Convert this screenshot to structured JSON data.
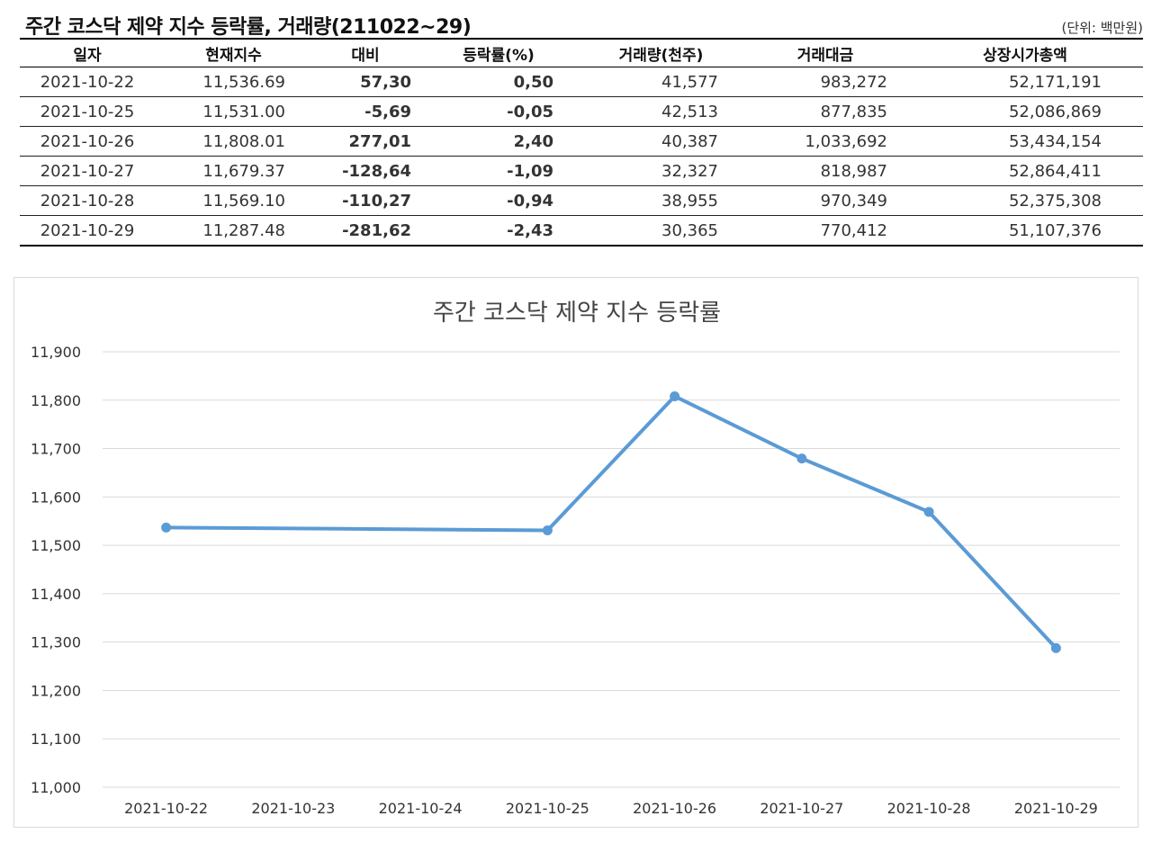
{
  "header": {
    "title": "주간 코스닥 제약 지수 등락률, 거래량(211022~29)",
    "unit": "(단위: 백만원)"
  },
  "table": {
    "columns": [
      "일자",
      "현재지수",
      "대비",
      "등락률(%)",
      "거래량(천주)",
      "거래대금",
      "상장시가총액"
    ],
    "rows": [
      {
        "date": "2021-10-22",
        "index": "11,536.69",
        "diff": "57,30",
        "rate": "0,50",
        "volume": "41,577",
        "amount": "983,272",
        "cap": "52,171,191",
        "sign": "pos"
      },
      {
        "date": "2021-10-25",
        "index": "11,531.00",
        "diff": "-5,69",
        "rate": "-0,05",
        "volume": "42,513",
        "amount": "877,835",
        "cap": "52,086,869",
        "sign": "neg"
      },
      {
        "date": "2021-10-26",
        "index": "11,808.01",
        "diff": "277,01",
        "rate": "2,40",
        "volume": "40,387",
        "amount": "1,033,692",
        "cap": "53,434,154",
        "sign": "pos"
      },
      {
        "date": "2021-10-27",
        "index": "11,679.37",
        "diff": "-128,64",
        "rate": "-1,09",
        "volume": "32,327",
        "amount": "818,987",
        "cap": "52,864,411",
        "sign": "neg"
      },
      {
        "date": "2021-10-28",
        "index": "11,569.10",
        "diff": "-110,27",
        "rate": "-0,94",
        "volume": "38,955",
        "amount": "970,349",
        "cap": "52,375,308",
        "sign": "neg"
      },
      {
        "date": "2021-10-29",
        "index": "11,287.48",
        "diff": "-281,62",
        "rate": "-2,43",
        "volume": "30,365",
        "amount": "770,412",
        "cap": "51,107,376",
        "sign": "neg"
      }
    ]
  },
  "colors": {
    "line": "#5b9bd5",
    "positive": "#e60000",
    "negative": "#0000cc",
    "grid": "#d9d9d9"
  },
  "chart_data": {
    "type": "line",
    "title": "주간 코스닥 제약 지수 등락률",
    "x": [
      "2021-10-22",
      "2021-10-23",
      "2021-10-24",
      "2021-10-25",
      "2021-10-26",
      "2021-10-27",
      "2021-10-28",
      "2021-10-29"
    ],
    "series": [
      {
        "points": [
          {
            "x": "2021-10-22",
            "y": 11536.69
          },
          {
            "x": "2021-10-25",
            "y": 11531.0
          },
          {
            "x": "2021-10-26",
            "y": 11808.01
          },
          {
            "x": "2021-10-27",
            "y": 11679.37
          },
          {
            "x": "2021-10-28",
            "y": 11569.1
          },
          {
            "x": "2021-10-29",
            "y": 11287.48
          }
        ]
      }
    ],
    "yticks": [
      "11,000",
      "11,100",
      "11,200",
      "11,300",
      "11,400",
      "11,500",
      "11,600",
      "11,700",
      "11,800",
      "11,900"
    ],
    "ylim": [
      11000,
      11900
    ],
    "grid": true,
    "legend": "none",
    "xlabel": "",
    "ylabel": ""
  }
}
